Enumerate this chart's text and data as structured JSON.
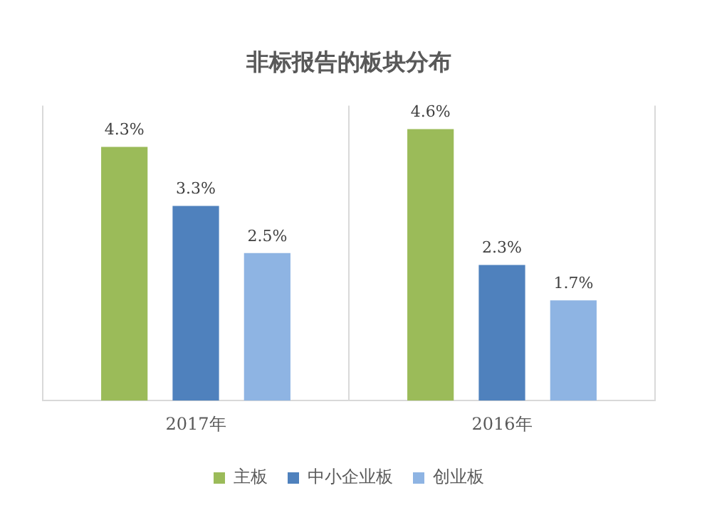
{
  "chart_data": {
    "type": "bar",
    "title": "非标报告的板块分布",
    "categories": [
      "2017年",
      "2016年"
    ],
    "series": [
      {
        "name": "主板",
        "color": "#9bbb59",
        "values": [
          4.3,
          4.6
        ],
        "value_labels": [
          "4.3%",
          "4.6%"
        ]
      },
      {
        "name": "中小企业板",
        "color": "#4f81bd",
        "values": [
          3.3,
          2.3
        ],
        "value_labels": [
          "3.3%",
          "2.3%"
        ]
      },
      {
        "name": "创业板",
        "color": "#8eb4e3",
        "values": [
          2.5,
          1.7
        ],
        "value_labels": [
          "2.5%",
          "1.7%"
        ]
      }
    ],
    "grid": "x",
    "legend": "bottom",
    "tick_labels": "x"
  }
}
